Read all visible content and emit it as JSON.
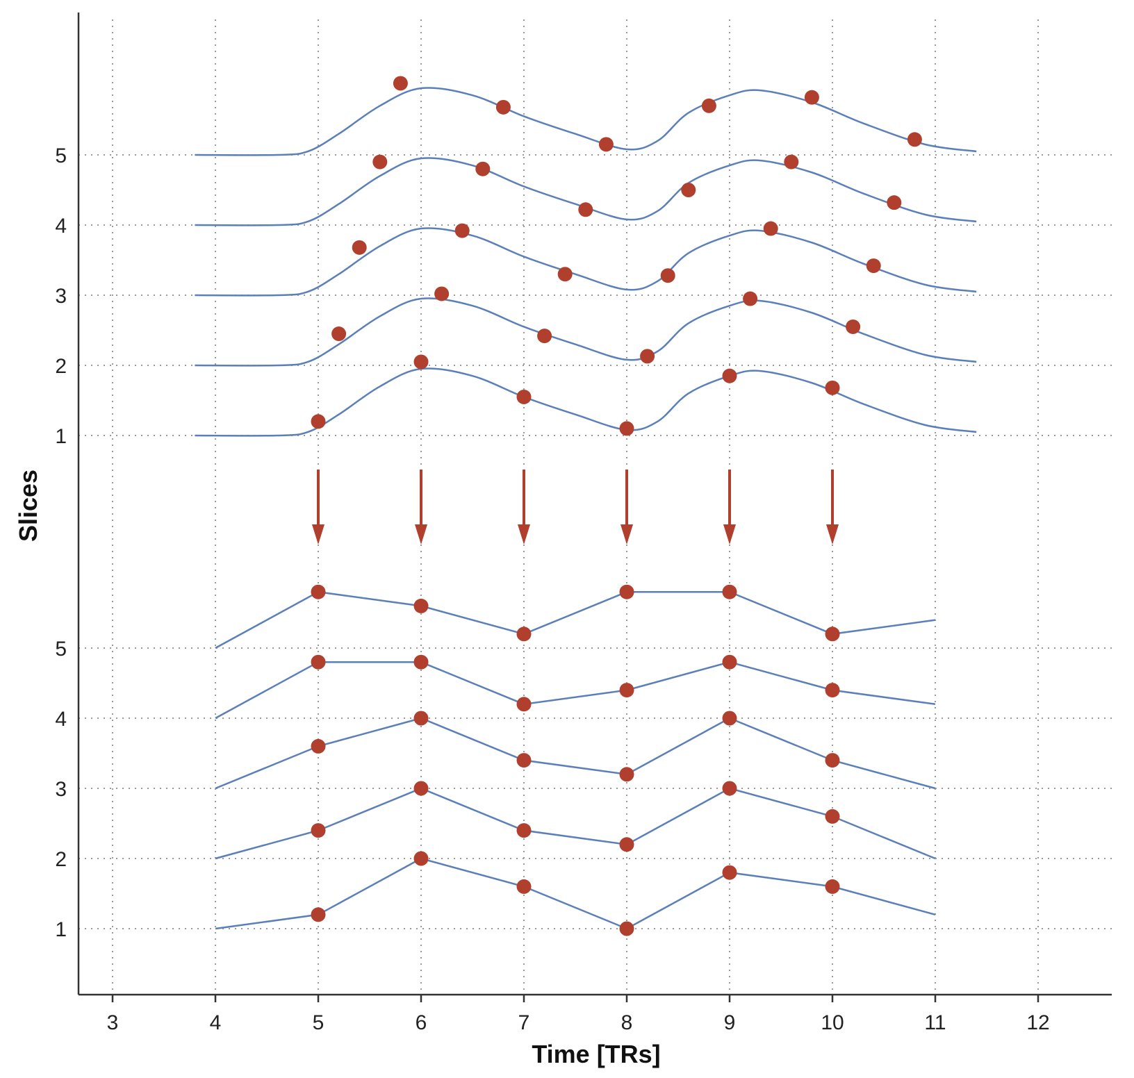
{
  "chart_data": {
    "type": "line",
    "xlabel": "Time [TRs]",
    "ylabel": "Slices",
    "xlim": [
      2.7,
      12.7
    ],
    "x_ticks": [
      "3",
      "4",
      "5",
      "6",
      "7",
      "8",
      "9",
      "10",
      "11",
      "12"
    ],
    "grid": true,
    "top_panel": {
      "y_ticks": [
        "1",
        "2",
        "3",
        "4",
        "5"
      ],
      "curve_template": [
        [
          3.8,
          0
        ],
        [
          4.6,
          0
        ],
        [
          4.9,
          0.05
        ],
        [
          5.2,
          0.3
        ],
        [
          5.6,
          0.7
        ],
        [
          6.0,
          0.95
        ],
        [
          6.5,
          0.85
        ],
        [
          7.0,
          0.55
        ],
        [
          7.5,
          0.3
        ],
        [
          8.0,
          0.08
        ],
        [
          8.3,
          0.2
        ],
        [
          8.6,
          0.6
        ],
        [
          9.0,
          0.85
        ],
        [
          9.3,
          0.92
        ],
        [
          9.8,
          0.75
        ],
        [
          10.3,
          0.45
        ],
        [
          10.9,
          0.15
        ],
        [
          11.4,
          0.05
        ]
      ],
      "slices": [
        {
          "slice": 1,
          "x_shift": 0.0,
          "points": [
            [
              5.0,
              1.2
            ],
            [
              6.0,
              2.05
            ],
            [
              7.0,
              1.55
            ],
            [
              8.0,
              1.1
            ],
            [
              9.0,
              1.85
            ],
            [
              10.0,
              1.68
            ]
          ]
        },
        {
          "slice": 2,
          "x_shift": 0.0,
          "points": [
            [
              5.2,
              2.45
            ],
            [
              6.2,
              3.02
            ],
            [
              7.2,
              2.42
            ],
            [
              8.2,
              2.13
            ],
            [
              9.2,
              2.95
            ],
            [
              10.2,
              2.55
            ]
          ]
        },
        {
          "slice": 3,
          "x_shift": 0.0,
          "points": [
            [
              5.4,
              3.68
            ],
            [
              6.4,
              3.92
            ],
            [
              7.4,
              3.3
            ],
            [
              8.4,
              3.28
            ],
            [
              9.4,
              3.95
            ],
            [
              10.4,
              3.42
            ]
          ]
        },
        {
          "slice": 4,
          "x_shift": 0.0,
          "points": [
            [
              5.6,
              4.9
            ],
            [
              6.6,
              4.8
            ],
            [
              7.6,
              4.22
            ],
            [
              8.6,
              4.5
            ],
            [
              9.6,
              4.9
            ],
            [
              10.6,
              4.32
            ]
          ]
        },
        {
          "slice": 5,
          "x_shift": 0.0,
          "points": [
            [
              5.8,
              6.02
            ],
            [
              6.8,
              5.68
            ],
            [
              7.8,
              5.15
            ],
            [
              8.8,
              5.7
            ],
            [
              9.8,
              5.82
            ],
            [
              10.8,
              5.22
            ]
          ]
        }
      ]
    },
    "arrows_x": [
      5,
      6,
      7,
      8,
      9,
      10
    ],
    "bottom_panel": {
      "y_ticks": [
        "1",
        "2",
        "3",
        "4",
        "5"
      ],
      "slices": [
        {
          "slice": 1,
          "start": [
            4,
            1.0
          ],
          "end": [
            11,
            1.2
          ],
          "points": [
            [
              5,
              1.2
            ],
            [
              6,
              2.0
            ],
            [
              7,
              1.6
            ],
            [
              8,
              1.0
            ],
            [
              9,
              1.8
            ],
            [
              10,
              1.6
            ]
          ]
        },
        {
          "slice": 2,
          "start": [
            4,
            2.0
          ],
          "end": [
            11,
            2.0
          ],
          "points": [
            [
              5,
              2.4
            ],
            [
              6,
              3.0
            ],
            [
              7,
              2.4
            ],
            [
              8,
              2.2
            ],
            [
              9,
              3.0
            ],
            [
              10,
              2.6
            ]
          ]
        },
        {
          "slice": 3,
          "start": [
            4,
            3.0
          ],
          "end": [
            11,
            3.0
          ],
          "points": [
            [
              5,
              3.6
            ],
            [
              6,
              4.0
            ],
            [
              7,
              3.4
            ],
            [
              8,
              3.2
            ],
            [
              9,
              4.0
            ],
            [
              10,
              3.4
            ]
          ]
        },
        {
          "slice": 4,
          "start": [
            4,
            4.0
          ],
          "end": [
            11,
            4.2
          ],
          "points": [
            [
              5,
              4.8
            ],
            [
              6,
              4.8
            ],
            [
              7,
              4.2
            ],
            [
              8,
              4.4
            ],
            [
              9,
              4.8
            ],
            [
              10,
              4.4
            ]
          ]
        },
        {
          "slice": 5,
          "start": [
            4,
            5.0
          ],
          "end": [
            11,
            5.4
          ],
          "points": [
            [
              5,
              5.8
            ],
            [
              6,
              5.6
            ],
            [
              7,
              5.2
            ],
            [
              8,
              5.8
            ],
            [
              9,
              5.8
            ],
            [
              10,
              5.2
            ]
          ]
        }
      ]
    },
    "colors": {
      "curve": "#5b7fb8",
      "points": "#b0402d",
      "arrows": "#b0402d",
      "grid": "#9a9a9a"
    }
  }
}
